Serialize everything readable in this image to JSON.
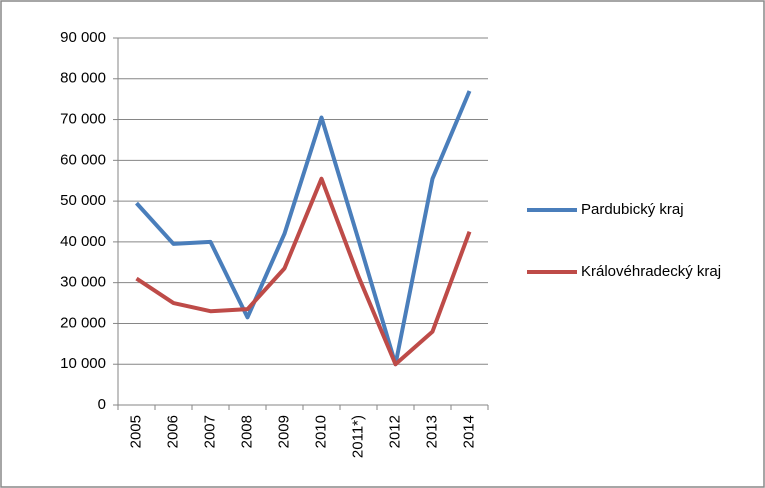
{
  "chart_data": {
    "type": "line",
    "categories": [
      "2005",
      "2006",
      "2007",
      "2008",
      "2009",
      "2010",
      "2011*)",
      "2012",
      "2013",
      "2014"
    ],
    "series": [
      {
        "name": "Pardubický kraj",
        "color": "#4a7ebb",
        "values": [
          49500,
          39500,
          40000,
          21500,
          42000,
          70500,
          40500,
          10000,
          55500,
          77000
        ]
      },
      {
        "name": "Královéhradecký kraj",
        "color": "#be4b48",
        "values": [
          31000,
          25000,
          23000,
          23500,
          33500,
          55500,
          31500,
          10000,
          18000,
          42500
        ]
      }
    ],
    "ylim": [
      0,
      90000
    ],
    "yticks": [
      {
        "value": 0,
        "label": "0"
      },
      {
        "value": 10000,
        "label": "10 000"
      },
      {
        "value": 20000,
        "label": "20 000"
      },
      {
        "value": 30000,
        "label": "30 000"
      },
      {
        "value": 40000,
        "label": "40 000"
      },
      {
        "value": 50000,
        "label": "50 000"
      },
      {
        "value": 60000,
        "label": "60 000"
      },
      {
        "value": 70000,
        "label": "70 000"
      },
      {
        "value": 80000,
        "label": "80 000"
      },
      {
        "value": 90000,
        "label": "90 000"
      }
    ],
    "grid": true,
    "legend": "right"
  }
}
